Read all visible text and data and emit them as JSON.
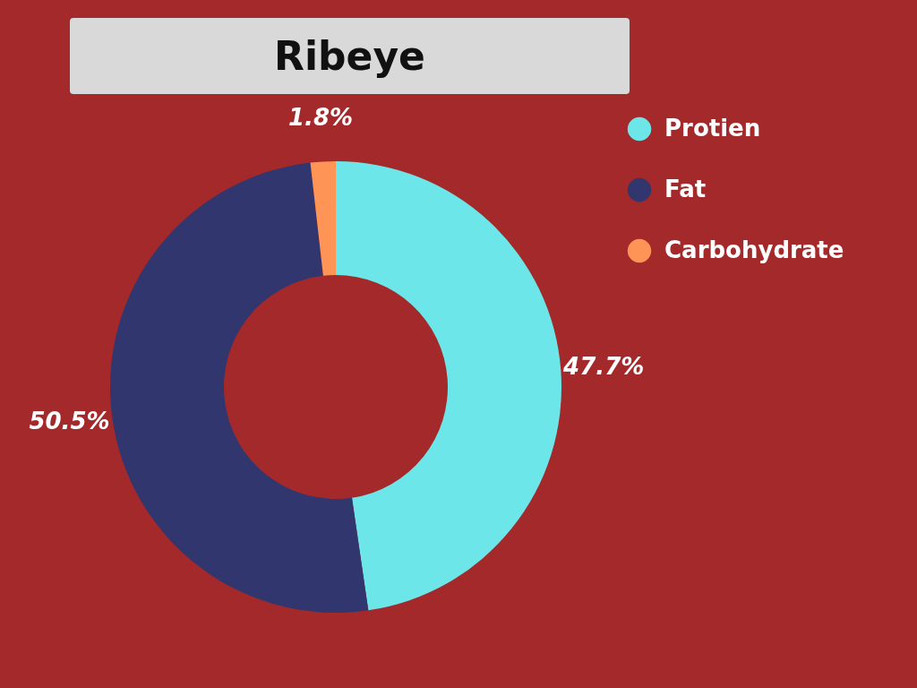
{
  "chart_data": {
    "type": "donut",
    "title": "Ribeye",
    "categories": [
      "Protien",
      "Fat",
      "Carbohydrate"
    ],
    "values": [
      47.7,
      50.5,
      1.8
    ],
    "colors": [
      "#6ce6e8",
      "#32366e",
      "#ff9457"
    ],
    "value_labels": [
      "47.7%",
      "50.5%",
      "1.8%"
    ],
    "legend": "top right"
  }
}
